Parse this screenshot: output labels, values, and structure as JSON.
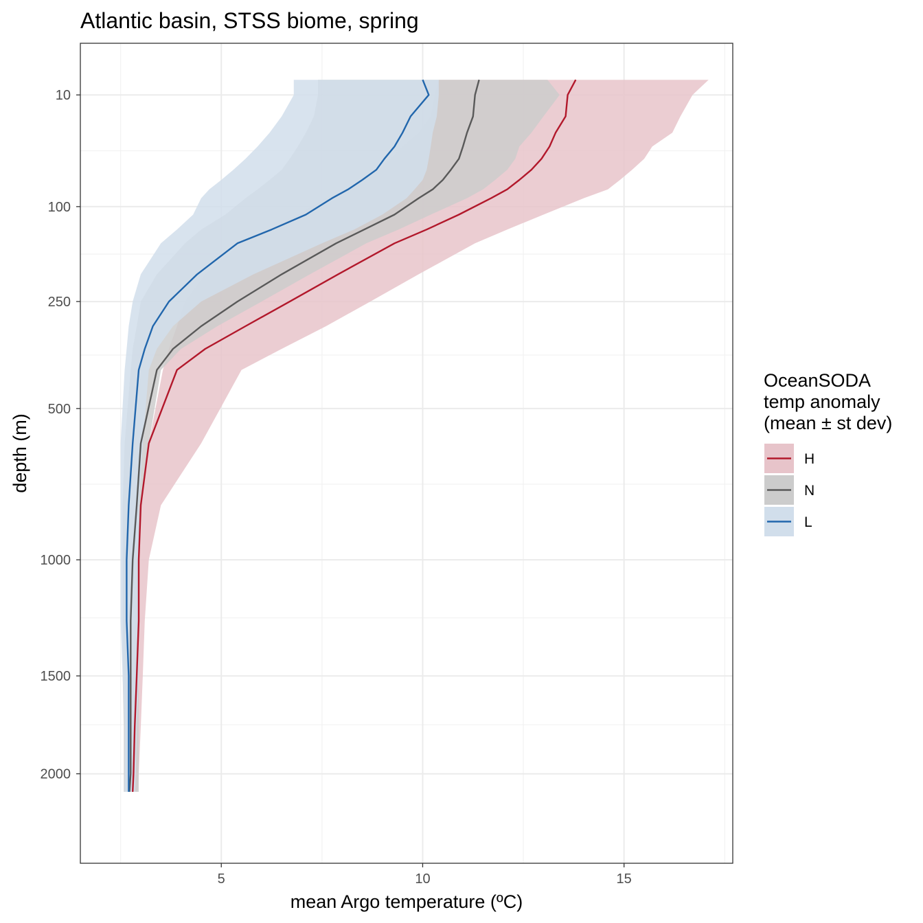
{
  "chart_data": {
    "type": "area",
    "title": "Atlantic basin, STSS biome, spring",
    "xlabel": "mean Argo temperature (ºC)",
    "ylabel": "depth (m)",
    "xlim": [
      1.5,
      17.7
    ],
    "x_ticks": [
      5,
      10,
      15
    ],
    "y_scale": "reversed sqrt",
    "ylim": [
      2520,
      -1
    ],
    "y_ticks": [
      10,
      100,
      250,
      500,
      1000,
      1500,
      2000
    ],
    "grid": true,
    "legend": {
      "title_lines": [
        "OceanSODA",
        "temp anomaly",
        "(mean ± st dev)"
      ],
      "position": "right"
    },
    "depths": [
      5,
      10,
      20,
      30,
      40,
      50,
      60,
      70,
      80,
      90,
      110,
      130,
      150,
      200,
      250,
      300,
      350,
      400,
      600,
      800,
      1000,
      1250,
      1500,
      1750,
      2000,
      2100
    ],
    "series": [
      {
        "name": "H",
        "color": "#b2182b",
        "fill": "#e7c4ca",
        "mean": [
          13.8,
          13.6,
          13.55,
          13.3,
          13.15,
          12.95,
          12.7,
          12.4,
          12.1,
          11.7,
          10.9,
          10.1,
          9.3,
          7.9,
          6.7,
          5.6,
          4.6,
          3.9,
          3.2,
          3.0,
          2.95,
          2.95,
          2.9,
          2.85,
          2.82,
          2.8
        ],
        "sd_low": [
          10.4,
          10.3,
          10.2,
          9.9,
          9.5,
          9.2,
          8.9,
          8.5,
          8.1,
          7.6,
          6.9,
          6.2,
          5.5,
          4.6,
          4.1,
          3.9,
          3.7,
          3.55,
          3.2,
          3.0,
          2.9,
          2.85,
          2.8,
          2.75,
          2.72,
          2.7
        ],
        "sd_high": [
          17.1,
          16.7,
          16.4,
          16.2,
          15.7,
          15.5,
          15.2,
          14.9,
          14.6,
          14.0,
          13.0,
          12.1,
          11.3,
          9.9,
          8.7,
          7.6,
          6.5,
          5.5,
          4.5,
          3.5,
          3.2,
          3.1,
          3.05,
          3.0,
          2.95,
          2.92
        ]
      },
      {
        "name": "N",
        "color": "#595959",
        "fill": "#cccccc",
        "mean": [
          11.4,
          11.3,
          11.25,
          11.1,
          11.0,
          10.9,
          10.7,
          10.5,
          10.25,
          9.9,
          9.3,
          8.55,
          7.85,
          6.5,
          5.4,
          4.5,
          3.8,
          3.4,
          3.0,
          2.9,
          2.8,
          2.75,
          2.75,
          2.75,
          2.75,
          2.72
        ],
        "sd_low": [
          7.4,
          7.4,
          7.3,
          7.1,
          6.9,
          6.7,
          6.5,
          6.2,
          5.9,
          5.6,
          5.1,
          4.5,
          4.1,
          3.4,
          3.0,
          2.9,
          2.8,
          2.75,
          2.6,
          2.55,
          2.55,
          2.55,
          2.55,
          2.58,
          2.58,
          2.58
        ],
        "sd_high": [
          13.1,
          13.4,
          13.0,
          12.7,
          12.4,
          12.3,
          12.1,
          11.8,
          11.5,
          11.1,
          10.2,
          9.4,
          8.6,
          7.2,
          6.0,
          4.9,
          4.0,
          3.5,
          3.2,
          3.0,
          2.95,
          2.95,
          2.95,
          2.95,
          2.95,
          2.95
        ]
      },
      {
        "name": "L",
        "color": "#2166ac",
        "fill": "#d1deeb",
        "mean": [
          10.0,
          10.15,
          9.7,
          9.5,
          9.3,
          9.05,
          8.85,
          8.5,
          8.15,
          7.75,
          7.1,
          6.25,
          5.4,
          4.4,
          3.7,
          3.3,
          3.1,
          2.95,
          2.8,
          2.7,
          2.65,
          2.65,
          2.7,
          2.7,
          2.7,
          2.7
        ],
        "sd_low": [
          6.8,
          6.8,
          6.5,
          6.2,
          5.9,
          5.6,
          5.3,
          5.0,
          4.7,
          4.5,
          4.3,
          3.9,
          3.5,
          3.0,
          2.8,
          2.7,
          2.65,
          2.6,
          2.5,
          2.5,
          2.5,
          2.5,
          2.55,
          2.6,
          2.6,
          2.6
        ],
        "sd_high": [
          10.4,
          10.4,
          10.35,
          10.25,
          10.2,
          10.15,
          10.1,
          10.0,
          9.8,
          9.6,
          9.0,
          8.3,
          7.5,
          5.8,
          4.5,
          3.8,
          3.4,
          3.2,
          3.05,
          2.95,
          2.95,
          2.95,
          2.95,
          2.9,
          2.88,
          2.86
        ]
      }
    ]
  }
}
